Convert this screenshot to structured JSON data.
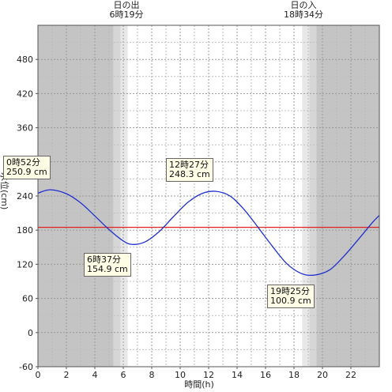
{
  "chart_data": {
    "type": "line",
    "xlabel": "時間(h)",
    "ylabel": "水位(cm)",
    "xlim": [
      0,
      24
    ],
    "ylim": [
      -60,
      540
    ],
    "xticks": [
      0,
      2,
      4,
      6,
      8,
      10,
      12,
      14,
      16,
      18,
      20,
      22
    ],
    "yticks": [
      -60,
      0,
      60,
      120,
      180,
      240,
      300,
      360,
      420,
      480
    ],
    "grid": true,
    "reference_line": {
      "value": 185,
      "color": "#dd2222"
    },
    "sunrise": {
      "title": "日の出",
      "time": "6時19分",
      "hour": 6.32
    },
    "sunset": {
      "title": "日の入",
      "time": "18時34分",
      "hour": 18.57
    },
    "series": [
      {
        "color": "#1f2fcf",
        "x": [
          0,
          0.87,
          2,
          3,
          4,
          5,
          6,
          6.62,
          7.5,
          8.5,
          9.5,
          10.5,
          11.5,
          12.45,
          13.5,
          14.5,
          15.5,
          16.5,
          17.5,
          18.5,
          19.42,
          20.5,
          21.5,
          22.5,
          23.5,
          24
        ],
        "y": [
          245,
          250.9,
          244,
          228,
          205,
          181,
          161,
          154.9,
          159,
          177,
          203,
          228,
          244,
          248.3,
          240,
          216,
          184,
          151,
          121,
          104,
          100.9,
          110,
          134,
          163,
          193,
          206
        ]
      }
    ],
    "annotations": [
      {
        "time": "0時52分",
        "value": "250.9 cm",
        "hour": 0.87,
        "level": 250.9
      },
      {
        "time": "6時37分",
        "value": "154.9 cm",
        "hour": 6.62,
        "level": 154.9
      },
      {
        "time": "12時27分",
        "value": "248.3 cm",
        "hour": 12.45,
        "level": 248.3
      },
      {
        "time": "19時25分",
        "value": "100.9 cm",
        "hour": 19.42,
        "level": 100.9
      }
    ]
  }
}
